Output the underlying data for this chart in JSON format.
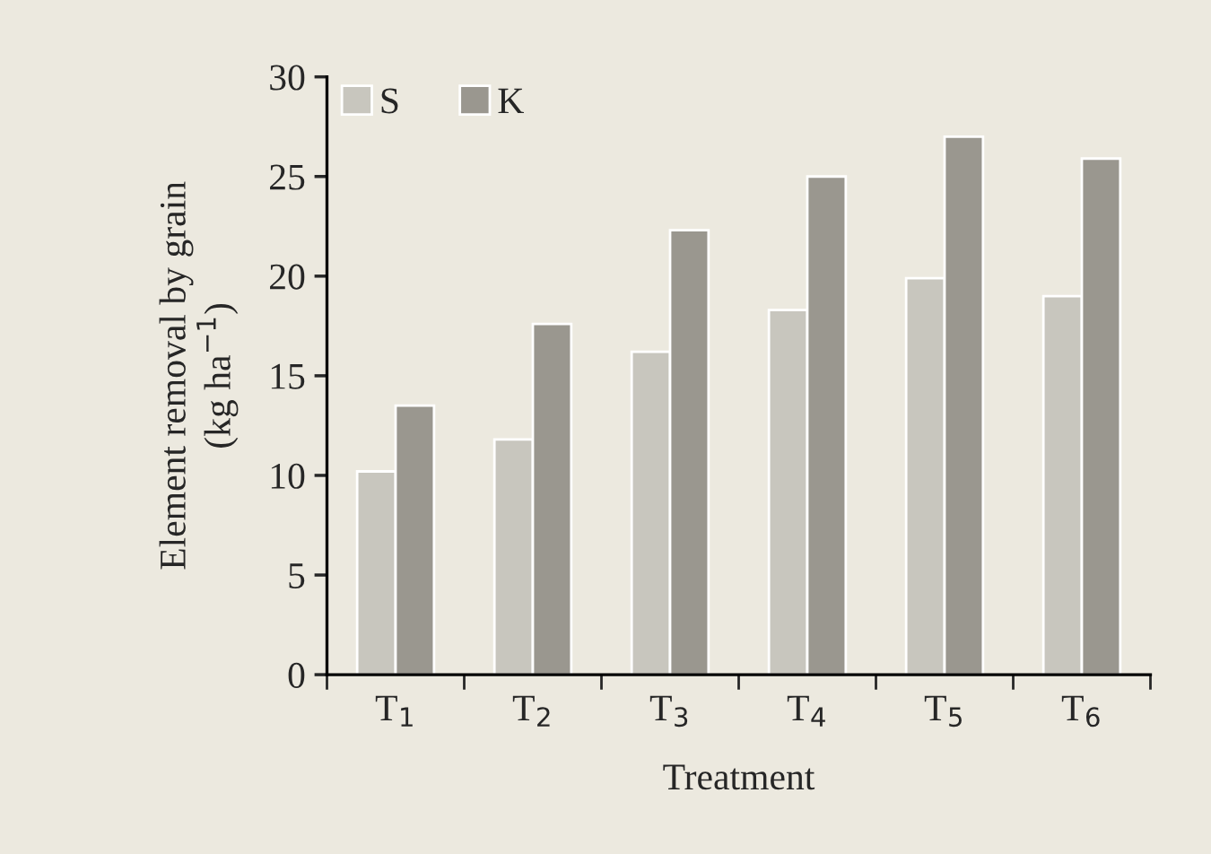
{
  "chart_data": {
    "type": "bar",
    "xlabel": "Treatment",
    "ylabel": "Element removal by grain\n(kg ha$^{−1}$)",
    "categories": [
      "T$_{1}$",
      "T$_{2}$",
      "T$_{3}$",
      "T$_{4}$",
      "T$_{5}$",
      "T$_{6}$"
    ],
    "series": [
      {
        "name": "S",
        "color": "#c8c6be",
        "values": [
          10.2,
          11.8,
          16.2,
          18.3,
          19.9,
          19.0
        ]
      },
      {
        "name": "K",
        "color": "#9a978f",
        "values": [
          13.5,
          17.6,
          22.3,
          25.0,
          27.0,
          25.9
        ]
      }
    ],
    "ylim": [
      0,
      30
    ],
    "yticks": [
      0,
      5,
      10,
      15,
      20,
      25,
      30
    ],
    "grid": false,
    "legend": "top left"
  }
}
